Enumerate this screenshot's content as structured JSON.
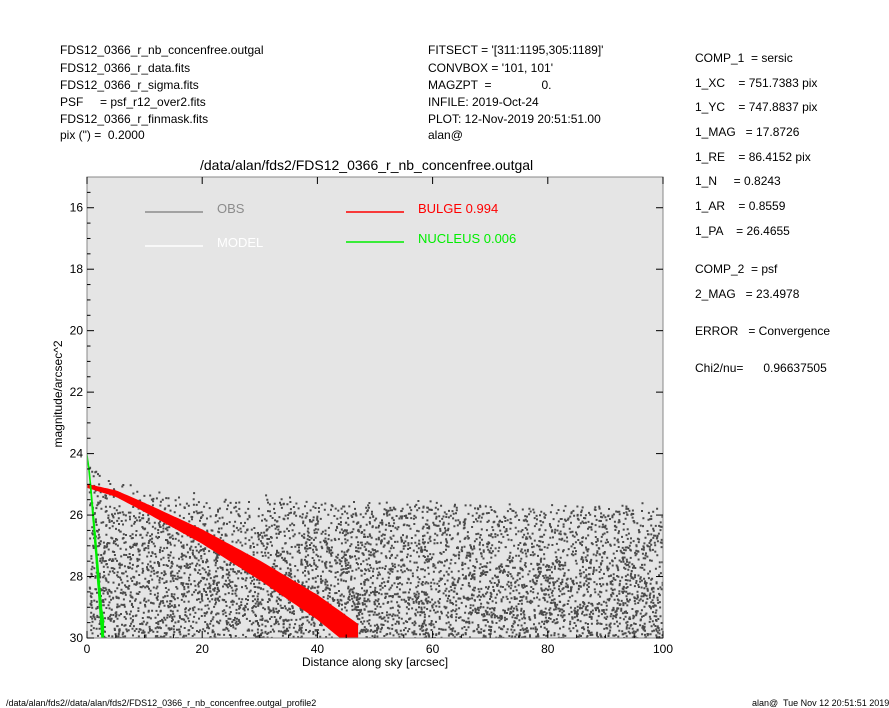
{
  "header": {
    "left": [
      "FDS12_0366_r_nb_concenfree.outgal",
      "FDS12_0366_r_data.fits",
      "FDS12_0366_r_sigma.fits",
      "PSF     = psf_r12_over2.fits",
      "FDS12_0366_r_finmask.fits",
      "pix (\") =  0.2000"
    ],
    "middle": [
      "FITSECT = '[311:1195,305:1189]'",
      "CONVBOX = '101, 101'",
      "MAGZPT  =               0.",
      "INFILE: 2019-Oct-24",
      "PLOT: 12-Nov-2019 20:51:51.00",
      "alan@"
    ]
  },
  "fit_params": [
    "COMP_1  = sersic",
    "1_XC    = 751.7383 pix",
    "1_YC    = 747.8837 pix",
    "1_MAG   = 17.8726",
    "1_RE    = 86.4152 pix",
    "1_N     = 0.8243",
    "1_AR    = 0.8559",
    "1_PA    = 26.4655",
    "",
    "COMP_2  = psf",
    "2_MAG   = 23.4978",
    "",
    "ERROR   = Convergence",
    "",
    "Chi2/nu=      0.96637505"
  ],
  "footer": {
    "left": "/data/alan/fds2//data/alan/fds2/FDS12_0366_r_nb_concenfree.outgal_profile2",
    "right": "alan@  Tue Nov 12 20:51:51 2019"
  },
  "colors": {
    "plot_bg": "#e5e5e5",
    "obs": "#4a4a4a",
    "model": "#ffffff",
    "bulge": "#ff0000",
    "nucleus": "#00ee00",
    "obs_legend": "#8c8c8c"
  },
  "chart_data": {
    "type": "scatter",
    "title": "/data/alan/fds2/FDS12_0366_r_nb_concenfree.outgal",
    "xlabel": "Distance along sky [arcsec]",
    "ylabel": "magnitude/arcsec^2",
    "xlim": [
      0,
      100
    ],
    "ylim": [
      30,
      15
    ],
    "y_inverted": true,
    "xticks": [
      0,
      20,
      40,
      60,
      80,
      100
    ],
    "yticks": [
      16,
      18,
      20,
      22,
      24,
      26,
      28,
      30
    ],
    "grid": false,
    "legend": [
      {
        "label": "OBS",
        "color": "#8c8c8c"
      },
      {
        "label": "MODEL",
        "color": "#ffffff"
      },
      {
        "label": "BULGE  0.994",
        "color": "#ff0000"
      },
      {
        "label": "NUCLEUS  0.006",
        "color": "#00ee00"
      }
    ],
    "series": [
      {
        "name": "OBS",
        "kind": "point-cloud",
        "profile": [
          [
            0.5,
            24.4
          ],
          [
            5,
            25.0
          ],
          [
            20,
            25.4
          ],
          [
            40,
            25.5
          ],
          [
            60,
            25.6
          ],
          [
            80,
            25.7
          ],
          [
            100,
            25.6
          ]
        ],
        "spread_to": 30.5
      },
      {
        "name": "BULGE  0.994",
        "kind": "band",
        "center": [
          [
            0,
            25.05
          ],
          [
            5,
            25.3
          ],
          [
            10,
            25.75
          ],
          [
            20,
            26.7
          ],
          [
            30,
            27.8
          ],
          [
            40,
            29.0
          ],
          [
            47,
            30.0
          ]
        ],
        "width": [
          [
            0,
            0.05
          ],
          [
            47,
            0.45
          ]
        ]
      },
      {
        "name": "NUCLEUS  0.006",
        "kind": "band",
        "center": [
          [
            0,
            24.0
          ],
          [
            0.5,
            24.8
          ],
          [
            1.0,
            25.9
          ],
          [
            1.5,
            27.0
          ],
          [
            2.0,
            28.2
          ],
          [
            2.6,
            29.6
          ],
          [
            2.9,
            30.0
          ]
        ],
        "width": [
          [
            0,
            0.05
          ],
          [
            2.9,
            0.6
          ]
        ]
      }
    ]
  }
}
